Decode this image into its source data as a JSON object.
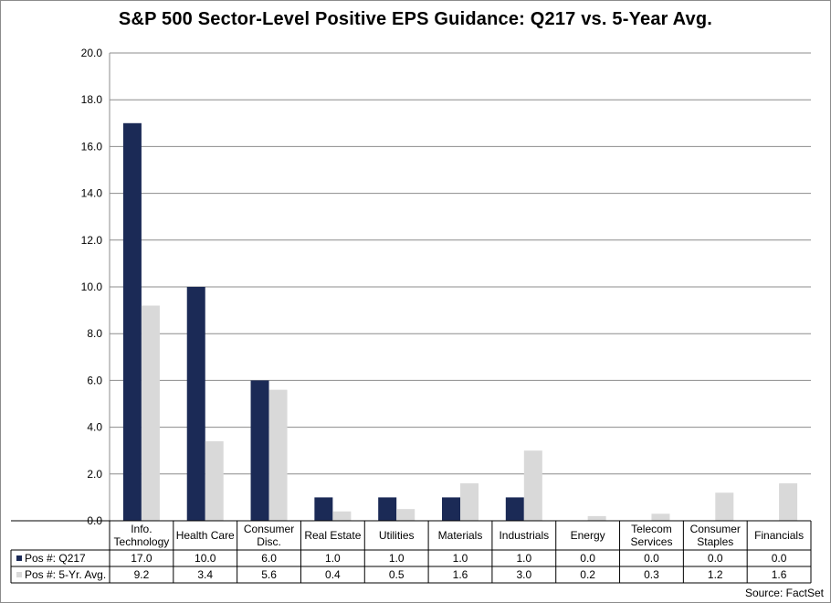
{
  "chart_data": {
    "type": "bar",
    "title": "S&P 500 Sector-Level Positive EPS Guidance: Q217 vs. 5-Year Avg.",
    "source": "Source: FactSet",
    "ylim": [
      0,
      20
    ],
    "yticks": [
      "0.0",
      "2.0",
      "4.0",
      "6.0",
      "8.0",
      "10.0",
      "12.0",
      "14.0",
      "16.0",
      "18.0",
      "20.0"
    ],
    "grid": true,
    "categories": [
      [
        "Info.",
        "Technology"
      ],
      [
        "Health Care"
      ],
      [
        "Consumer",
        "Disc."
      ],
      [
        "Real Estate"
      ],
      [
        "Utilities"
      ],
      [
        "Materials"
      ],
      [
        "Industrials"
      ],
      [
        "Energy"
      ],
      [
        "Telecom",
        "Services"
      ],
      [
        "Consumer",
        "Staples"
      ],
      [
        "Financials"
      ]
    ],
    "series": [
      {
        "name": "Pos #: Q217",
        "color": "#1b2a56",
        "values": [
          17.0,
          10.0,
          6.0,
          1.0,
          1.0,
          1.0,
          1.0,
          0.0,
          0.0,
          0.0,
          0.0
        ],
        "labels": [
          "17.0",
          "10.0",
          "6.0",
          "1.0",
          "1.0",
          "1.0",
          "1.0",
          "0.0",
          "0.0",
          "0.0",
          "0.0"
        ]
      },
      {
        "name": "Pos #: 5-Yr. Avg.",
        "color": "#d9d9d9",
        "values": [
          9.2,
          3.4,
          5.6,
          0.4,
          0.5,
          1.6,
          3.0,
          0.2,
          0.3,
          1.2,
          1.6
        ],
        "labels": [
          "9.2",
          "3.4",
          "5.6",
          "0.4",
          "0.5",
          "1.6",
          "3.0",
          "0.2",
          "0.3",
          "1.2",
          "1.6"
        ]
      }
    ]
  }
}
